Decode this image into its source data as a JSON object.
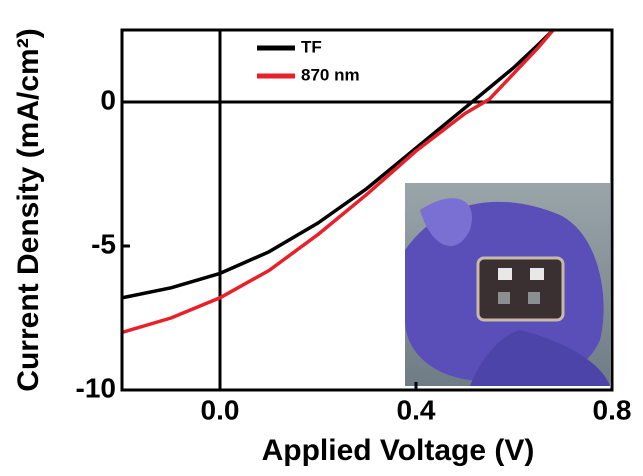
{
  "chart_data": {
    "type": "line",
    "x_label": "Applied Voltage (V)",
    "y_label": "Current Density (mA/cm²)",
    "x": [
      -0.2,
      -0.1,
      0.0,
      0.1,
      0.2,
      0.3,
      0.4,
      0.5,
      0.55,
      0.6,
      0.65,
      0.68
    ],
    "series": [
      {
        "name": "TF",
        "color": "#000000",
        "values": [
          -6.8,
          -6.45,
          -5.95,
          -5.2,
          -4.2,
          -3.0,
          -1.6,
          -0.2,
          0.5,
          1.2,
          2.0,
          2.5
        ]
      },
      {
        "name": "870 nm",
        "color": "#e8202a",
        "values": [
          -8.0,
          -7.5,
          -6.8,
          -5.85,
          -4.6,
          -3.2,
          -1.7,
          -0.4,
          0.1,
          1.0,
          1.9,
          2.5
        ]
      }
    ],
    "xlim": [
      -0.2,
      0.8
    ],
    "ylim": [
      -10,
      2.5
    ],
    "xticks": [
      {
        "value": 0,
        "label": "0.0"
      },
      0.4,
      0.8
    ],
    "yticks": [
      0,
      -5,
      -10
    ],
    "zero_lines": true,
    "legend": "top-left"
  }
}
